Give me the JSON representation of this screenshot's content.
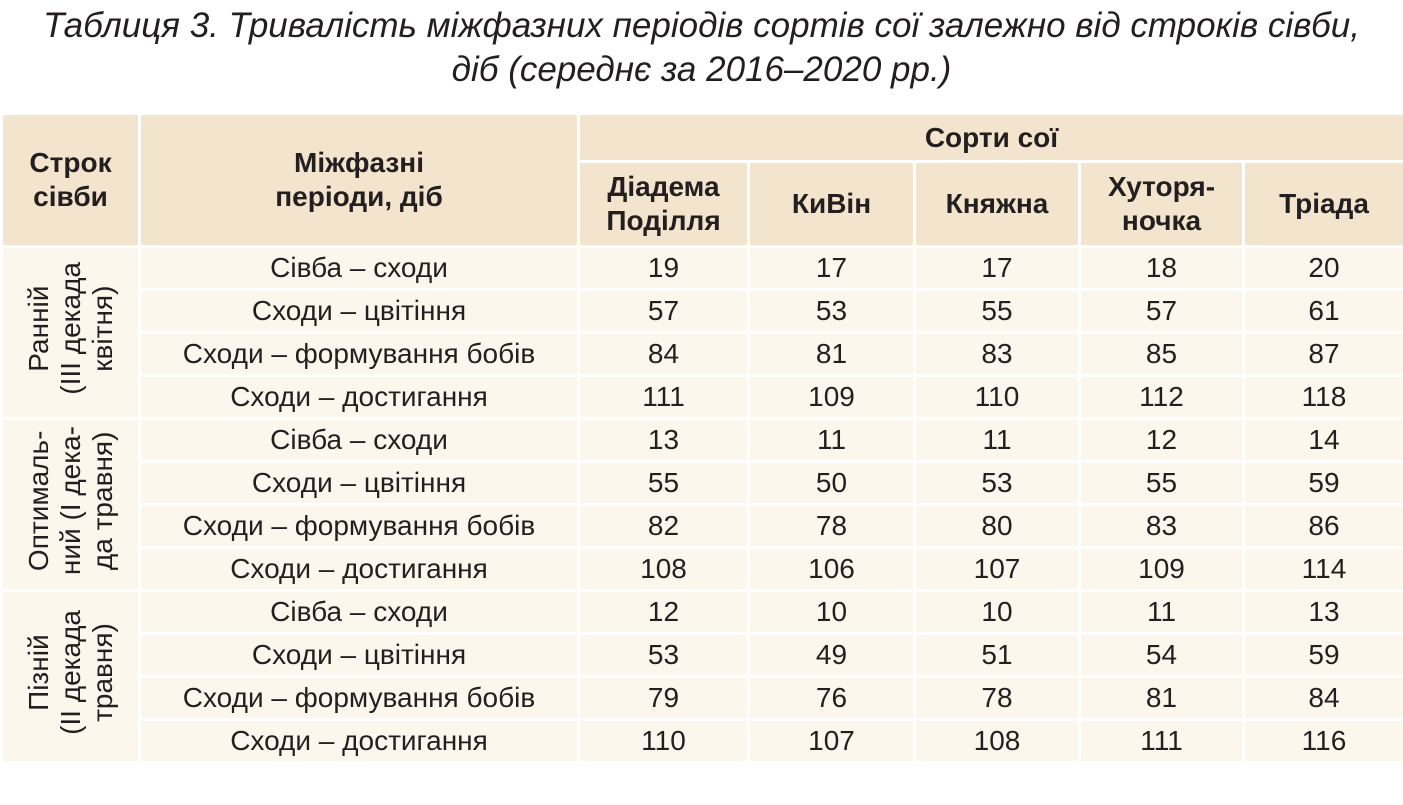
{
  "title": [
    "Таблиця 3. Тривалість міжфазних періодів сортів сої залежно від строків сівби,",
    "діб (середнє за 2016–2020 рр.)"
  ],
  "table": {
    "header": {
      "sowing_term": "Строк\nсівби",
      "periods": "Міжфазні\nперіоди, діб",
      "varieties_group": "Сорти сої",
      "varieties": [
        "Діадема\nПоділля",
        "КиВін",
        "Княжна",
        "Хуторя-\nночка",
        "Тріада"
      ]
    },
    "groups": [
      {
        "label": "Ранній\n(III декада\nквітня)",
        "rows": [
          {
            "period": "Сівба – сходи",
            "values": [
              19,
              17,
              17,
              18,
              20
            ]
          },
          {
            "period": "Сходи – цвітіння",
            "values": [
              57,
              53,
              55,
              57,
              61
            ]
          },
          {
            "period": "Сходи – формування бобів",
            "values": [
              84,
              81,
              83,
              85,
              87
            ]
          },
          {
            "period": "Сходи – достигання",
            "values": [
              111,
              109,
              110,
              112,
              118
            ]
          }
        ]
      },
      {
        "label": "Оптималь-\nний (I дека-\nда травня)",
        "rows": [
          {
            "period": "Сівба – сходи",
            "values": [
              13,
              11,
              11,
              12,
              14
            ]
          },
          {
            "period": "Сходи – цвітіння",
            "values": [
              55,
              50,
              53,
              55,
              59
            ]
          },
          {
            "period": "Сходи – формування бобів",
            "values": [
              82,
              78,
              80,
              83,
              86
            ]
          },
          {
            "period": "Сходи – достигання",
            "values": [
              108,
              106,
              107,
              109,
              114
            ]
          }
        ]
      },
      {
        "label": "Пізній\n(II декада\nтравня)",
        "rows": [
          {
            "period": "Сівба – сходи",
            "values": [
              12,
              10,
              10,
              11,
              13
            ]
          },
          {
            "period": "Сходи – цвітіння",
            "values": [
              53,
              49,
              51,
              54,
              59
            ]
          },
          {
            "period": "Сходи – формування бобів",
            "values": [
              79,
              76,
              78,
              81,
              84
            ]
          },
          {
            "period": "Сходи – достигання",
            "values": [
              110,
              107,
              108,
              111,
              116
            ]
          }
        ]
      }
    ]
  }
}
